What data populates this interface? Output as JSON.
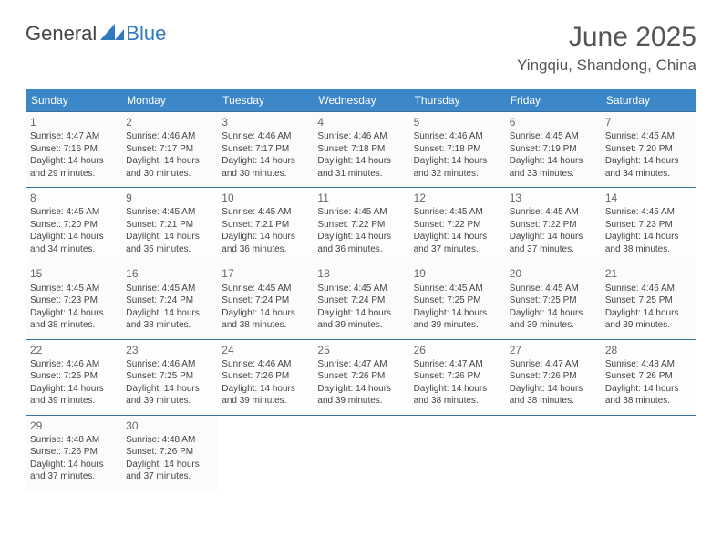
{
  "logo": {
    "general": "General",
    "blue": "Blue",
    "icon_color": "#2f7abf"
  },
  "title": "June 2025",
  "location": "Yingqiu, Shandong, China",
  "colors": {
    "header_bg": "#3b87c8",
    "header_text": "#ffffff",
    "border": "#3b6f9e",
    "text": "#444444",
    "title_text": "#555555"
  },
  "day_headers": [
    "Sunday",
    "Monday",
    "Tuesday",
    "Wednesday",
    "Thursday",
    "Friday",
    "Saturday"
  ],
  "weeks": [
    [
      {
        "n": "1",
        "sr": "4:47 AM",
        "ss": "7:16 PM",
        "dl": "14 hours and 29 minutes."
      },
      {
        "n": "2",
        "sr": "4:46 AM",
        "ss": "7:17 PM",
        "dl": "14 hours and 30 minutes."
      },
      {
        "n": "3",
        "sr": "4:46 AM",
        "ss": "7:17 PM",
        "dl": "14 hours and 30 minutes."
      },
      {
        "n": "4",
        "sr": "4:46 AM",
        "ss": "7:18 PM",
        "dl": "14 hours and 31 minutes."
      },
      {
        "n": "5",
        "sr": "4:46 AM",
        "ss": "7:18 PM",
        "dl": "14 hours and 32 minutes."
      },
      {
        "n": "6",
        "sr": "4:45 AM",
        "ss": "7:19 PM",
        "dl": "14 hours and 33 minutes."
      },
      {
        "n": "7",
        "sr": "4:45 AM",
        "ss": "7:20 PM",
        "dl": "14 hours and 34 minutes."
      }
    ],
    [
      {
        "n": "8",
        "sr": "4:45 AM",
        "ss": "7:20 PM",
        "dl": "14 hours and 34 minutes."
      },
      {
        "n": "9",
        "sr": "4:45 AM",
        "ss": "7:21 PM",
        "dl": "14 hours and 35 minutes."
      },
      {
        "n": "10",
        "sr": "4:45 AM",
        "ss": "7:21 PM",
        "dl": "14 hours and 36 minutes."
      },
      {
        "n": "11",
        "sr": "4:45 AM",
        "ss": "7:22 PM",
        "dl": "14 hours and 36 minutes."
      },
      {
        "n": "12",
        "sr": "4:45 AM",
        "ss": "7:22 PM",
        "dl": "14 hours and 37 minutes."
      },
      {
        "n": "13",
        "sr": "4:45 AM",
        "ss": "7:22 PM",
        "dl": "14 hours and 37 minutes."
      },
      {
        "n": "14",
        "sr": "4:45 AM",
        "ss": "7:23 PM",
        "dl": "14 hours and 38 minutes."
      }
    ],
    [
      {
        "n": "15",
        "sr": "4:45 AM",
        "ss": "7:23 PM",
        "dl": "14 hours and 38 minutes."
      },
      {
        "n": "16",
        "sr": "4:45 AM",
        "ss": "7:24 PM",
        "dl": "14 hours and 38 minutes."
      },
      {
        "n": "17",
        "sr": "4:45 AM",
        "ss": "7:24 PM",
        "dl": "14 hours and 38 minutes."
      },
      {
        "n": "18",
        "sr": "4:45 AM",
        "ss": "7:24 PM",
        "dl": "14 hours and 39 minutes."
      },
      {
        "n": "19",
        "sr": "4:45 AM",
        "ss": "7:25 PM",
        "dl": "14 hours and 39 minutes."
      },
      {
        "n": "20",
        "sr": "4:45 AM",
        "ss": "7:25 PM",
        "dl": "14 hours and 39 minutes."
      },
      {
        "n": "21",
        "sr": "4:46 AM",
        "ss": "7:25 PM",
        "dl": "14 hours and 39 minutes."
      }
    ],
    [
      {
        "n": "22",
        "sr": "4:46 AM",
        "ss": "7:25 PM",
        "dl": "14 hours and 39 minutes."
      },
      {
        "n": "23",
        "sr": "4:46 AM",
        "ss": "7:25 PM",
        "dl": "14 hours and 39 minutes."
      },
      {
        "n": "24",
        "sr": "4:46 AM",
        "ss": "7:26 PM",
        "dl": "14 hours and 39 minutes."
      },
      {
        "n": "25",
        "sr": "4:47 AM",
        "ss": "7:26 PM",
        "dl": "14 hours and 39 minutes."
      },
      {
        "n": "26",
        "sr": "4:47 AM",
        "ss": "7:26 PM",
        "dl": "14 hours and 38 minutes."
      },
      {
        "n": "27",
        "sr": "4:47 AM",
        "ss": "7:26 PM",
        "dl": "14 hours and 38 minutes."
      },
      {
        "n": "28",
        "sr": "4:48 AM",
        "ss": "7:26 PM",
        "dl": "14 hours and 38 minutes."
      }
    ],
    [
      {
        "n": "29",
        "sr": "4:48 AM",
        "ss": "7:26 PM",
        "dl": "14 hours and 37 minutes."
      },
      {
        "n": "30",
        "sr": "4:48 AM",
        "ss": "7:26 PM",
        "dl": "14 hours and 37 minutes."
      },
      null,
      null,
      null,
      null,
      null
    ]
  ],
  "labels": {
    "sunrise": "Sunrise:",
    "sunset": "Sunset:",
    "daylight": "Daylight:"
  }
}
